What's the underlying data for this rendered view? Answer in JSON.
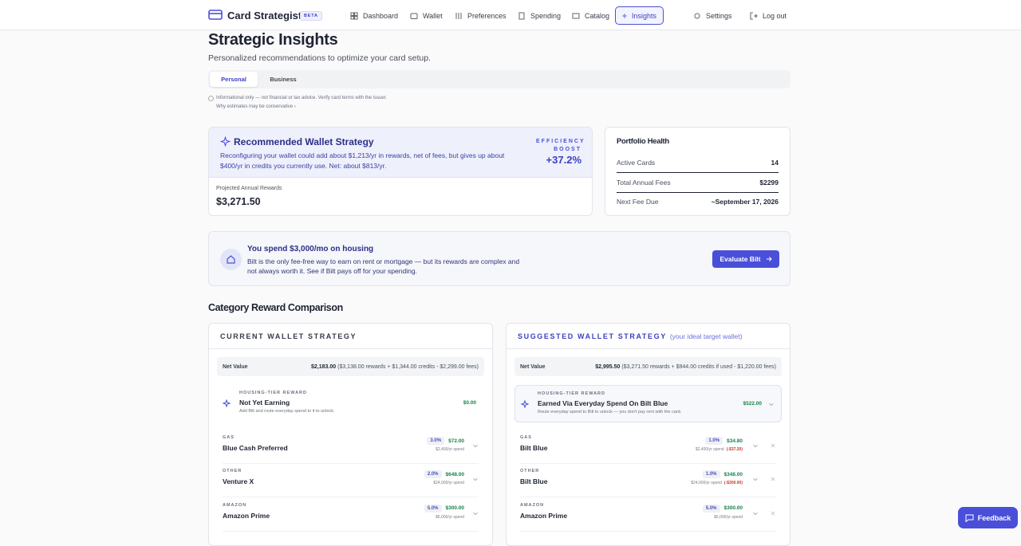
{
  "nav": {
    "brand": "Card Strategist",
    "badge": "BETA",
    "items": [
      "Dashboard",
      "Wallet",
      "Preferences",
      "Spending",
      "Catalog",
      "Insights"
    ],
    "right": [
      "Settings",
      "Log out"
    ]
  },
  "header": {
    "title": "Strategic Insights",
    "subtitle": "Personalized recommendations to optimize your card setup."
  },
  "tabs": [
    "Personal",
    "Business"
  ],
  "disclaimer": {
    "text": "Informational only — not financial or tax advice. Verify card terms with the issuer.",
    "link": "Why estimates may be conservative ›"
  },
  "recommended": {
    "title": "Recommended Wallet Strategy",
    "text": "Reconfiguring your wallet could add about $1,213/yr in rewards, net of fees, but gives up about $400/yr in credits you currently use. Net: about $813/yr.",
    "boost_label": "EFFICIENCY BOOST",
    "boost_value": "+37.2%",
    "projected_label": "Projected Annual Rewards",
    "projected_value": "$3,271.50"
  },
  "portfolio": {
    "title": "Portfolio Health",
    "rows": [
      [
        "Active Cards",
        "14"
      ],
      [
        "Total Annual Fees",
        "$2299"
      ],
      [
        "Next Fee Due",
        "~September 17, 2026"
      ]
    ]
  },
  "housing": {
    "title": "You spend $3,000/mo on housing",
    "text": "Bilt is the only fee-free way to earn on rent or mortgage — but its rewards are complex and not always worth it. See if Bilt pays off for your spending.",
    "button": "Evaluate Bilt"
  },
  "comparison": {
    "title": "Category Reward Comparison",
    "columns": [
      {
        "heading": "CURRENT WALLET STRATEGY",
        "net_label": "Net Value",
        "net_value": "$2,183.00",
        "net_detail": "($3,138.00 rewards + $1,344.00 credits - $2,299.00 fees)",
        "housing": {
          "label": "HOUSING-TIER REWARD",
          "name": "Not Yet Earning",
          "desc": "Add Bilt and route everyday spend to it to unlock.",
          "value": "$0.00"
        },
        "rows": [
          {
            "category": "GAS",
            "card": "Blue Cash Preferred",
            "rate": "3.0%",
            "value": "$72.00",
            "spend": "$2,400/yr spend"
          },
          {
            "category": "OTHER",
            "card": "Venture X",
            "rate": "2.0%",
            "value": "$648.00",
            "spend": "$24,000/yr spend"
          },
          {
            "category": "AMAZON",
            "card": "Amazon Prime",
            "rate": "5.0%",
            "value": "$300.00",
            "spend": "$6,000/yr spend"
          }
        ]
      },
      {
        "heading": "SUGGESTED WALLET STRATEGY",
        "heading_note": "(your ideal target wallet)",
        "net_label": "Net Value",
        "net_value": "$2,995.50",
        "net_detail": "($3,271.50 rewards + $944.00 credits if used - $1,220.00 fees)",
        "housing": {
          "label": "HOUSING-TIER REWARD",
          "name": "Earned Via Everyday Spend On Bilt Blue",
          "desc": "Route everyday spend to Bilt to unlock — you don't pay rent with the card.",
          "value": "$522.00"
        },
        "rows": [
          {
            "category": "GAS",
            "card": "Bilt Blue",
            "rate": "1.0%",
            "value": "$34.80",
            "spend": "$2,400/yr spend",
            "diff": "(-$37.20)"
          },
          {
            "category": "OTHER",
            "card": "Bilt Blue",
            "rate": "1.0%",
            "value": "$348.00",
            "spend": "$24,000/yr spend",
            "diff": "(-$300.00)"
          },
          {
            "category": "AMAZON",
            "card": "Amazon Prime",
            "rate": "5.0%",
            "value": "$300.00",
            "spend": "$6,000/yr spend"
          }
        ]
      }
    ]
  },
  "feedback": "Feedback"
}
